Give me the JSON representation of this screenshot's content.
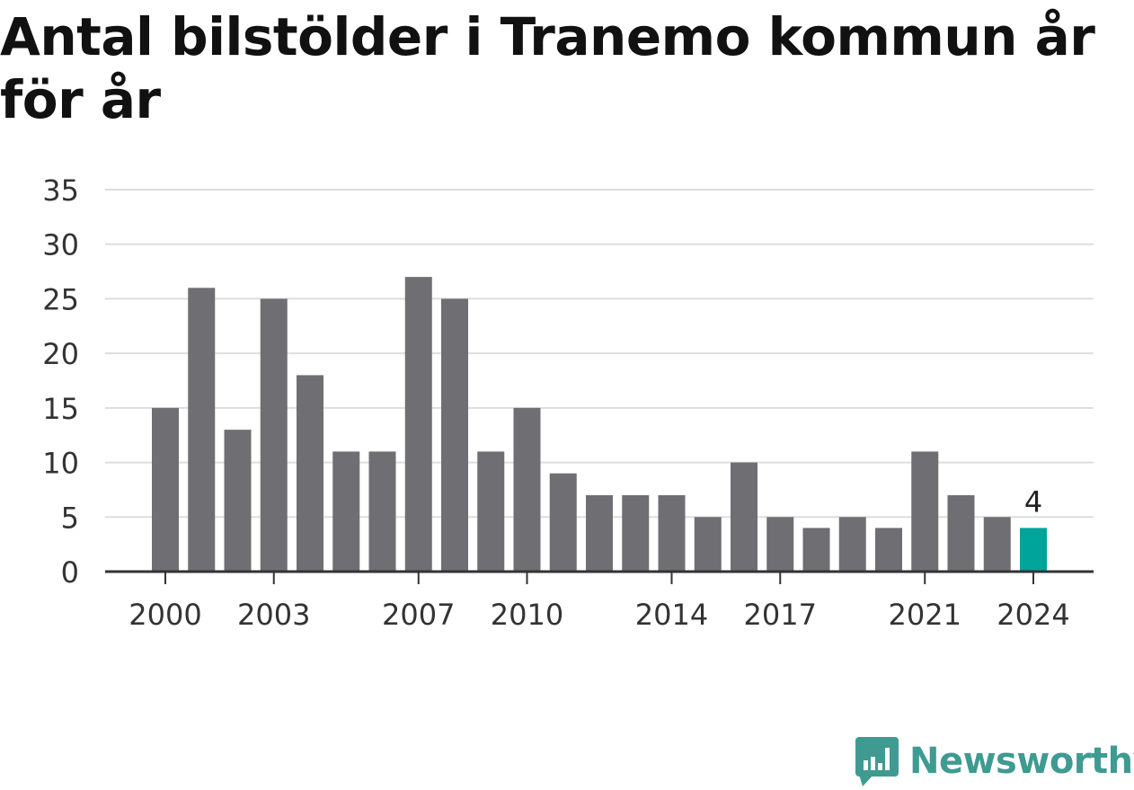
{
  "chart_data": {
    "type": "bar",
    "title": "Antal bilstölder i Tranemo kommun år för år",
    "categories": [
      "2000",
      "2001",
      "2002",
      "2003",
      "2004",
      "2005",
      "2006",
      "2007",
      "2008",
      "2009",
      "2010",
      "2011",
      "2012",
      "2013",
      "2014",
      "2015",
      "2016",
      "2017",
      "2018",
      "2019",
      "2020",
      "2021",
      "2022",
      "2023",
      "2024"
    ],
    "values": [
      15,
      26,
      13,
      25,
      18,
      11,
      11,
      27,
      25,
      11,
      15,
      9,
      7,
      7,
      7,
      5,
      10,
      5,
      4,
      5,
      4,
      11,
      7,
      5,
      4
    ],
    "x_tick_labels": [
      "2000",
      "2003",
      "2007",
      "2010",
      "2014",
      "2017",
      "2021",
      "2024"
    ],
    "y_ticks": [
      0,
      5,
      10,
      15,
      20,
      25,
      30,
      35
    ],
    "ylim": [
      0,
      35
    ],
    "grid": true,
    "highlight": {
      "category": "2024",
      "label": "4"
    },
    "colors": {
      "bar": "#6f6e73",
      "highlight": "#00a499",
      "grid": "#dddddd",
      "axis": "#333333"
    }
  },
  "brand": {
    "name": "Newsworthy",
    "icon": "newsworthy-logo-icon",
    "color": "#3f9b92"
  }
}
